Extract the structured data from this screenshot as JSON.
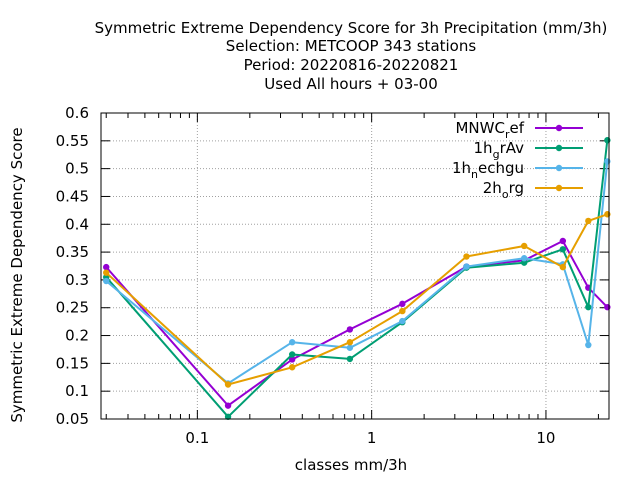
{
  "chart_data": {
    "type": "line",
    "title_lines": [
      "Symmetric Extreme Dependency Score  for 3h Precipitation (mm/3h)",
      "Selection: METCOOP    343 stations",
      "Period: 20220816-20220821",
      "Used  All hours  + 03-00"
    ],
    "xlabel": "classes mm/3h",
    "ylabel": "Symmetric Extreme Dependency Score",
    "x_scale": "log",
    "xlim": [
      0.028,
      23
    ],
    "ylim": [
      0.05,
      0.6
    ],
    "x_ticks": [
      {
        "value": 0.1,
        "label": "0.1"
      },
      {
        "value": 1,
        "label": "1"
      },
      {
        "value": 10,
        "label": "10"
      }
    ],
    "y_ticks": [
      {
        "value": 0.05,
        "label": "0.05"
      },
      {
        "value": 0.1,
        "label": "0.1"
      },
      {
        "value": 0.15,
        "label": "0.15"
      },
      {
        "value": 0.2,
        "label": "0.2"
      },
      {
        "value": 0.25,
        "label": "0.25"
      },
      {
        "value": 0.3,
        "label": "0.3"
      },
      {
        "value": 0.35,
        "label": "0.35"
      },
      {
        "value": 0.4,
        "label": "0.4"
      },
      {
        "value": 0.45,
        "label": "0.45"
      },
      {
        "value": 0.5,
        "label": "0.5"
      },
      {
        "value": 0.55,
        "label": "0.55"
      },
      {
        "value": 0.6,
        "label": "0.6"
      }
    ],
    "grid": true,
    "legend_position": "top-right",
    "x": [
      0.03,
      0.15,
      0.35,
      0.75,
      1.5,
      3.5,
      7.5,
      12.5,
      17.5,
      22.5
    ],
    "series": [
      {
        "name_main": "MNWC",
        "name_sub": "r",
        "name_rest": "ef",
        "color": "#9400d3",
        "values": [
          0.323,
          0.074,
          0.157,
          0.211,
          0.257,
          0.324,
          0.335,
          0.37,
          0.286,
          0.251
        ]
      },
      {
        "name_main": "1h",
        "name_sub": "g",
        "name_rest": "rAv",
        "color": "#009e73",
        "values": [
          0.305,
          0.054,
          0.166,
          0.158,
          0.224,
          0.322,
          0.331,
          0.355,
          0.251,
          0.551
        ]
      },
      {
        "name_main": "1h",
        "name_sub": "n",
        "name_rest": "echgu",
        "color": "#56b4e9",
        "values": [
          0.298,
          0.114,
          0.188,
          0.178,
          0.226,
          0.324,
          0.339,
          0.328,
          0.183,
          0.513
        ]
      },
      {
        "name_main": "2h",
        "name_sub": "o",
        "name_rest": "rg",
        "color": "#e69f00",
        "values": [
          0.313,
          0.112,
          0.143,
          0.188,
          0.244,
          0.342,
          0.361,
          0.323,
          0.406,
          0.418
        ]
      }
    ]
  }
}
